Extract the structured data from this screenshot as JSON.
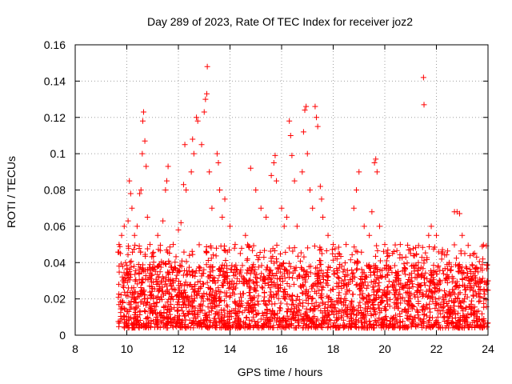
{
  "chart_data": {
    "type": "scatter",
    "title": "Day 289 of 2023, Rate Of TEC Index for receiver joz2",
    "xlabel": "GPS time / hours",
    "ylabel": "ROTI / TECUs",
    "xlim": [
      8,
      24
    ],
    "ylim": [
      0,
      0.16
    ],
    "xticks": [
      "8",
      "10",
      "12",
      "14",
      "16",
      "18",
      "20",
      "22",
      "24"
    ],
    "yticks": [
      "0",
      "0.02",
      "0.04",
      "0.06",
      "0.08",
      "0.1",
      "0.12",
      "0.14",
      "0.16"
    ],
    "grid": true,
    "marker": "plus",
    "color": "#ff0000",
    "series": [
      {
        "points": [
          [
            9.7,
            0.05
          ],
          [
            9.75,
            0.045
          ],
          [
            9.8,
            0.055
          ],
          [
            9.85,
            0.03
          ],
          [
            9.9,
            0.06
          ],
          [
            9.95,
            0.04
          ],
          [
            10.05,
            0.063
          ],
          [
            10.1,
            0.085
          ],
          [
            10.15,
            0.078
          ],
          [
            10.2,
            0.07
          ],
          [
            10.3,
            0.055
          ],
          [
            10.4,
            0.06
          ],
          [
            10.5,
            0.078
          ],
          [
            10.55,
            0.08
          ],
          [
            10.6,
            0.1
          ],
          [
            10.62,
            0.118
          ],
          [
            10.65,
            0.123
          ],
          [
            10.7,
            0.107
          ],
          [
            10.75,
            0.093
          ],
          [
            10.8,
            0.065
          ],
          [
            10.9,
            0.05
          ],
          [
            11.0,
            0.045
          ],
          [
            11.2,
            0.055
          ],
          [
            11.4,
            0.063
          ],
          [
            11.5,
            0.08
          ],
          [
            11.55,
            0.085
          ],
          [
            11.6,
            0.093
          ],
          [
            11.8,
            0.05
          ],
          [
            12.0,
            0.058
          ],
          [
            12.1,
            0.062
          ],
          [
            12.2,
            0.083
          ],
          [
            12.25,
            0.105
          ],
          [
            12.3,
            0.08
          ],
          [
            12.5,
            0.09
          ],
          [
            12.55,
            0.108
          ],
          [
            12.6,
            0.1
          ],
          [
            12.7,
            0.12
          ],
          [
            12.75,
            0.118
          ],
          [
            12.9,
            0.105
          ],
          [
            13.0,
            0.123
          ],
          [
            13.05,
            0.13
          ],
          [
            13.1,
            0.133
          ],
          [
            13.12,
            0.148
          ],
          [
            13.2,
            0.09
          ],
          [
            13.3,
            0.07
          ],
          [
            13.5,
            0.1
          ],
          [
            13.55,
            0.095
          ],
          [
            13.6,
            0.08
          ],
          [
            13.7,
            0.065
          ],
          [
            13.8,
            0.075
          ],
          [
            14.0,
            0.06
          ],
          [
            14.2,
            0.05
          ],
          [
            14.4,
            0.045
          ],
          [
            14.6,
            0.055
          ],
          [
            14.8,
            0.092
          ],
          [
            15.0,
            0.08
          ],
          [
            15.2,
            0.07
          ],
          [
            15.4,
            0.065
          ],
          [
            15.6,
            0.088
          ],
          [
            15.7,
            0.095
          ],
          [
            15.75,
            0.099
          ],
          [
            15.8,
            0.085
          ],
          [
            16.0,
            0.07
          ],
          [
            16.1,
            0.06
          ],
          [
            16.2,
            0.065
          ],
          [
            16.3,
            0.118
          ],
          [
            16.35,
            0.11
          ],
          [
            16.4,
            0.099
          ],
          [
            16.5,
            0.085
          ],
          [
            16.6,
            0.06
          ],
          [
            16.8,
            0.09
          ],
          [
            16.85,
            0.112
          ],
          [
            16.9,
            0.124
          ],
          [
            16.95,
            0.126
          ],
          [
            17.0,
            0.1
          ],
          [
            17.1,
            0.08
          ],
          [
            17.2,
            0.07
          ],
          [
            17.3,
            0.126
          ],
          [
            17.35,
            0.12
          ],
          [
            17.4,
            0.115
          ],
          [
            17.5,
            0.082
          ],
          [
            17.55,
            0.075
          ],
          [
            17.6,
            0.065
          ],
          [
            17.8,
            0.055
          ],
          [
            18.0,
            0.05
          ],
          [
            18.2,
            0.045
          ],
          [
            18.5,
            0.05
          ],
          [
            18.8,
            0.07
          ],
          [
            18.9,
            0.08
          ],
          [
            19.0,
            0.09
          ],
          [
            19.2,
            0.06
          ],
          [
            19.4,
            0.055
          ],
          [
            19.5,
            0.068
          ],
          [
            19.6,
            0.095
          ],
          [
            19.65,
            0.097
          ],
          [
            19.7,
            0.09
          ],
          [
            19.8,
            0.06
          ],
          [
            20.0,
            0.05
          ],
          [
            20.3,
            0.045
          ],
          [
            20.6,
            0.05
          ],
          [
            21.0,
            0.045
          ],
          [
            21.3,
            0.04
          ],
          [
            21.5,
            0.142
          ],
          [
            21.52,
            0.127
          ],
          [
            21.7,
            0.055
          ],
          [
            21.8,
            0.06
          ],
          [
            22.0,
            0.055
          ],
          [
            22.2,
            0.045
          ],
          [
            22.5,
            0.04
          ],
          [
            22.7,
            0.068
          ],
          [
            22.8,
            0.068
          ],
          [
            22.9,
            0.067
          ],
          [
            23.0,
            0.055
          ],
          [
            23.1,
            0.045
          ],
          [
            23.5,
            0.035
          ],
          [
            23.8,
            0.042
          ],
          [
            24.0,
            0.03
          ]
        ]
      }
    ]
  }
}
